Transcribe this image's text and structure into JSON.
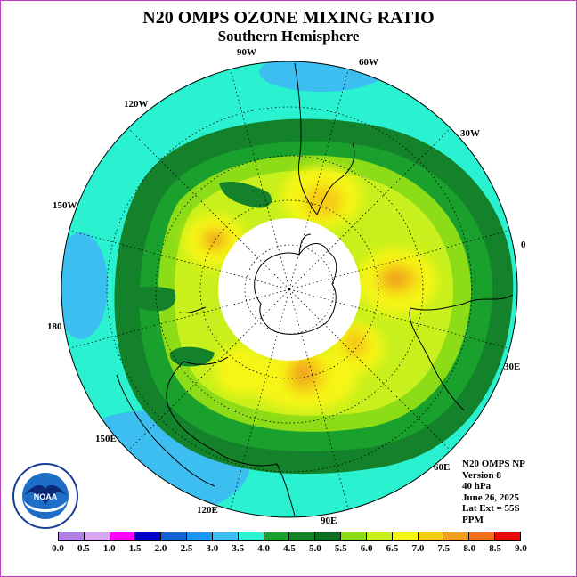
{
  "title": "N20 OMPS OZONE MIXING RATIO",
  "subtitle": "Southern Hemisphere",
  "longitude_labels": [
    {
      "id": "90W",
      "text": "90W"
    },
    {
      "id": "60W",
      "text": "60W"
    },
    {
      "id": "120W",
      "text": "120W"
    },
    {
      "id": "30W",
      "text": "30W"
    },
    {
      "id": "150W",
      "text": "150W"
    },
    {
      "id": "0",
      "text": "0"
    },
    {
      "id": "180",
      "text": "180"
    },
    {
      "id": "30E",
      "text": "30E"
    },
    {
      "id": "150E",
      "text": "150E"
    },
    {
      "id": "60E",
      "text": "60E"
    },
    {
      "id": "120E",
      "text": "120E"
    },
    {
      "id": "90E",
      "text": "90E"
    }
  ],
  "info": {
    "instrument": "N20 OMPS NP",
    "version": "Version 8",
    "level": "40 hPa",
    "date": "June 26, 2025",
    "lat_ext": "Lat Ext = 55S",
    "units": "PPM"
  },
  "logo": {
    "text": "NOAA"
  },
  "colorbar": {
    "labels": [
      "0.0",
      "0.5",
      "1.0",
      "1.5",
      "2.0",
      "2.5",
      "3.0",
      "3.5",
      "4.0",
      "4.5",
      "5.0",
      "5.5",
      "6.0",
      "6.5",
      "7.0",
      "7.5",
      "8.0",
      "8.5",
      "9.0"
    ],
    "colors": [
      "#b27fe6",
      "#d9a6f2",
      "#ff00ff",
      "#0000c8",
      "#1463d2",
      "#1e96f0",
      "#3cbef0",
      "#2af2d0",
      "#1aa02c",
      "#14822a",
      "#0c6e1e",
      "#8cdc18",
      "#c8f01c",
      "#f5f514",
      "#f5cc14",
      "#f0a01e",
      "#f06e1e",
      "#e60a0a",
      "#8c5a3c"
    ]
  },
  "map_data": {
    "projection": "south-polar-stereographic",
    "lat_extent_deg": -55,
    "center_hole_color": "#ffffff",
    "graticule": "dotted"
  }
}
